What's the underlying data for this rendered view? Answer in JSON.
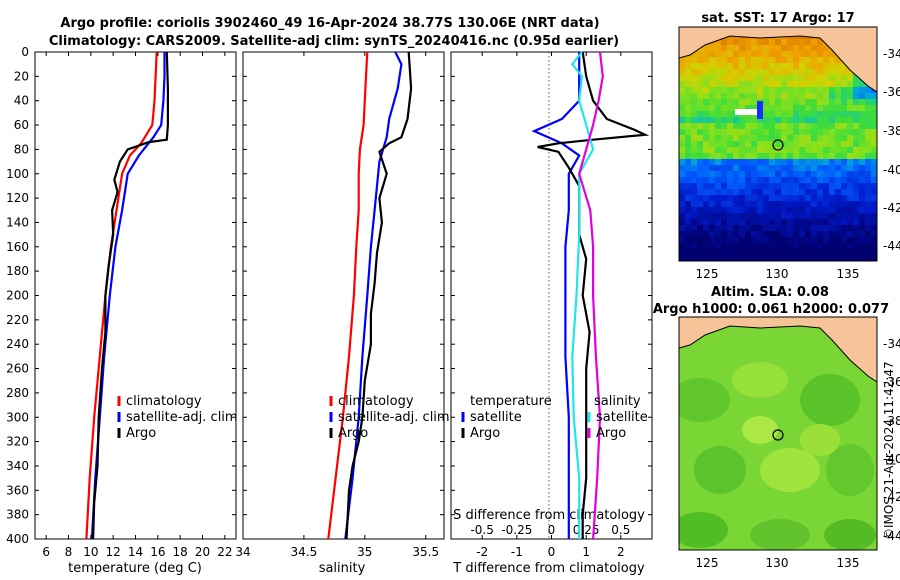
{
  "title": {
    "line1": "Argo profile: coriolis 3902460_49 16-Apr-2024 38.77S 130.06E (NRT data)",
    "line2": "Climatology: CARS2009. Satellite-adj clim: synTS_20240416.nc (0.95d earlier)"
  },
  "colors": {
    "climatology": "#ff0000",
    "satellite": "#0000ff",
    "argo": "#000000",
    "sat_salinity": "#22e6e6",
    "argo_salinity": "#e000e0",
    "land": "#f7c49a",
    "coast": "#000000"
  },
  "chart_data": [
    {
      "name": "temperature-profile",
      "type": "line",
      "xlabel": "temperature (deg C)",
      "ylabel": "",
      "xlim": [
        5,
        23
      ],
      "ylim": [
        400,
        0
      ],
      "xticks": [
        "6",
        "8",
        "10",
        "12",
        "14",
        "16",
        "18",
        "20",
        "22"
      ],
      "yticks": [
        "0",
        "20",
        "40",
        "60",
        "80",
        "100",
        "120",
        "140",
        "160",
        "180",
        "200",
        "220",
        "240",
        "260",
        "280",
        "300",
        "320",
        "340",
        "360",
        "380",
        "400"
      ],
      "series": [
        {
          "name": "climatology",
          "color": "#ff0000",
          "points": [
            [
              15.9,
              0
            ],
            [
              15.8,
              20
            ],
            [
              15.7,
              40
            ],
            [
              15.5,
              60
            ],
            [
              14.5,
              75
            ],
            [
              13.5,
              85
            ],
            [
              12.8,
              100
            ],
            [
              12.3,
              130
            ],
            [
              11.8,
              160
            ],
            [
              11.3,
              200
            ],
            [
              10.8,
              250
            ],
            [
              10.3,
              300
            ],
            [
              9.9,
              350
            ],
            [
              9.6,
              400
            ]
          ]
        },
        {
          "name": "satellite-adj. clim",
          "color": "#0000ff",
          "points": [
            [
              16.6,
              0
            ],
            [
              16.6,
              20
            ],
            [
              16.5,
              40
            ],
            [
              16.3,
              60
            ],
            [
              15.6,
              70
            ],
            [
              14.3,
              85
            ],
            [
              13.3,
              100
            ],
            [
              12.8,
              130
            ],
            [
              12.2,
              160
            ],
            [
              11.7,
              200
            ],
            [
              11.2,
              250
            ],
            [
              10.8,
              300
            ],
            [
              10.4,
              350
            ],
            [
              10.1,
              400
            ]
          ]
        },
        {
          "name": "Argo",
          "color": "#000000",
          "points": [
            [
              16.8,
              0
            ],
            [
              16.9,
              30
            ],
            [
              16.9,
              60
            ],
            [
              16.8,
              72
            ],
            [
              15.2,
              74
            ],
            [
              13.3,
              80
            ],
            [
              12.6,
              90
            ],
            [
              12.1,
              105
            ],
            [
              12.4,
              115
            ],
            [
              11.9,
              130
            ],
            [
              12.0,
              150
            ],
            [
              11.6,
              175
            ],
            [
              11.3,
              200
            ],
            [
              11.3,
              230
            ],
            [
              11.0,
              260
            ],
            [
              10.7,
              300
            ],
            [
              10.6,
              340
            ],
            [
              10.3,
              370
            ],
            [
              10.2,
              400
            ]
          ]
        }
      ],
      "legend": {
        "position": "bottom-right",
        "items": [
          "climatology",
          "satellite-adj. clim",
          "Argo"
        ]
      }
    },
    {
      "name": "salinity-profile",
      "type": "line",
      "xlabel": "salinity",
      "ylabel": "",
      "xlim": [
        34,
        35.65
      ],
      "ylim": [
        400,
        0
      ],
      "xticks": [
        "34",
        "34.5",
        "35",
        "35.5"
      ],
      "series": [
        {
          "name": "climatology",
          "color": "#ff0000",
          "points": [
            [
              35.02,
              0
            ],
            [
              35.01,
              20
            ],
            [
              35.0,
              40
            ],
            [
              34.99,
              60
            ],
            [
              34.96,
              80
            ],
            [
              34.95,
              100
            ],
            [
              34.95,
              130
            ],
            [
              34.93,
              160
            ],
            [
              34.91,
              200
            ],
            [
              34.87,
              250
            ],
            [
              34.82,
              300
            ],
            [
              34.76,
              350
            ],
            [
              34.7,
              400
            ]
          ]
        },
        {
          "name": "satellite-adj. clim",
          "color": "#0000ff",
          "points": [
            [
              35.25,
              0
            ],
            [
              35.3,
              10
            ],
            [
              35.27,
              30
            ],
            [
              35.2,
              55
            ],
            [
              35.18,
              70
            ],
            [
              35.12,
              90
            ],
            [
              35.08,
              130
            ],
            [
              35.05,
              160
            ],
            [
              35.02,
              200
            ],
            [
              34.98,
              250
            ],
            [
              34.95,
              300
            ],
            [
              34.9,
              350
            ],
            [
              34.84,
              400
            ]
          ]
        },
        {
          "name": "Argo",
          "color": "#000000",
          "points": [
            [
              35.36,
              0
            ],
            [
              35.38,
              30
            ],
            [
              35.35,
              55
            ],
            [
              35.3,
              70
            ],
            [
              35.2,
              75
            ],
            [
              35.12,
              82
            ],
            [
              35.18,
              100
            ],
            [
              35.12,
              120
            ],
            [
              35.14,
              140
            ],
            [
              35.1,
              165
            ],
            [
              35.08,
              190
            ],
            [
              35.05,
              215
            ],
            [
              35.05,
              240
            ],
            [
              35.0,
              270
            ],
            [
              34.98,
              300
            ],
            [
              34.95,
              320
            ],
            [
              34.9,
              340
            ],
            [
              34.87,
              360
            ],
            [
              34.86,
              380
            ],
            [
              34.85,
              400
            ]
          ]
        }
      ],
      "legend": {
        "position": "bottom-right",
        "items": [
          "climatology",
          "satellite-adj. clim",
          "Argo"
        ]
      }
    },
    {
      "name": "difference-profile",
      "type": "line",
      "xlabel": "T difference from climatology",
      "x2label": "S difference from climatology",
      "xlim": [
        -2.9,
        2.9
      ],
      "ylim": [
        400,
        0
      ],
      "xticks": [
        "-2",
        "-1",
        "0",
        "1",
        "2"
      ],
      "x2ticks": [
        "-0.5",
        "-0.25",
        "0",
        "0.25",
        "0.5"
      ],
      "series": [
        {
          "name": "temperature satellite",
          "color": "#0000ff",
          "points": [
            [
              0.8,
              0
            ],
            [
              0.8,
              20
            ],
            [
              0.8,
              40
            ],
            [
              0.3,
              55
            ],
            [
              -0.5,
              65
            ],
            [
              0.3,
              75
            ],
            [
              0.8,
              85
            ],
            [
              0.5,
              100
            ],
            [
              0.5,
              130
            ],
            [
              0.4,
              160
            ],
            [
              0.4,
              200
            ],
            [
              0.4,
              250
            ],
            [
              0.5,
              300
            ],
            [
              0.5,
              350
            ],
            [
              0.5,
              400
            ]
          ]
        },
        {
          "name": "temperature Argo",
          "color": "#000000",
          "points": [
            [
              0.9,
              0
            ],
            [
              1.0,
              20
            ],
            [
              1.2,
              40
            ],
            [
              1.6,
              55
            ],
            [
              2.4,
              64
            ],
            [
              2.7,
              68
            ],
            [
              1.2,
              72
            ],
            [
              0.2,
              75
            ],
            [
              -0.4,
              78
            ],
            [
              0.2,
              82
            ],
            [
              0.5,
              95
            ],
            [
              0.8,
              110
            ],
            [
              0.8,
              130
            ],
            [
              0.8,
              150
            ],
            [
              1.0,
              170
            ],
            [
              0.9,
              200
            ],
            [
              1.1,
              230
            ],
            [
              1.0,
              260
            ],
            [
              1.0,
              290
            ],
            [
              1.0,
              320
            ],
            [
              1.0,
              350
            ],
            [
              0.9,
              380
            ],
            [
              0.9,
              400
            ]
          ]
        },
        {
          "name": "salinity satellite",
          "color": "#22e6e6",
          "points": [
            [
              0.22,
              0
            ],
            [
              0.15,
              10
            ],
            [
              0.22,
              20
            ],
            [
              0.2,
              40
            ],
            [
              0.25,
              60
            ],
            [
              0.3,
              80
            ],
            [
              0.2,
              100
            ],
            [
              0.2,
              150
            ],
            [
              0.18,
              200
            ],
            [
              0.15,
              250
            ],
            [
              0.16,
              300
            ],
            [
              0.2,
              350
            ],
            [
              0.2,
              400
            ]
          ]
        },
        {
          "name": "salinity Argo",
          "color": "#e000e0",
          "points": [
            [
              0.35,
              0
            ],
            [
              0.37,
              20
            ],
            [
              0.34,
              40
            ],
            [
              0.3,
              60
            ],
            [
              0.25,
              80
            ],
            [
              0.2,
              100
            ],
            [
              0.28,
              130
            ],
            [
              0.3,
              160
            ],
            [
              0.3,
              200
            ],
            [
              0.32,
              250
            ],
            [
              0.35,
              300
            ],
            [
              0.33,
              350
            ],
            [
              0.3,
              400
            ]
          ]
        }
      ],
      "legend": {
        "position": "bottom",
        "temperature_title": "temperature",
        "salinity_title": "salinity",
        "temperature_items": [
          "satellite",
          "Argo"
        ],
        "salinity_items": [
          "satellite",
          "Argo"
        ]
      }
    },
    {
      "name": "sst-map",
      "type": "heatmap",
      "title": "sat. SST: 17 Argo: 17",
      "xticks": [
        "125",
        "130",
        "135"
      ],
      "yticks": [
        "-34",
        "-36",
        "-38",
        "-40",
        "-42",
        "-44"
      ],
      "xlim": [
        123.5,
        136.5
      ],
      "ylim": [
        -44.6,
        -33.2
      ],
      "float_position": [
        130.06,
        -38.77
      ]
    },
    {
      "name": "sla-map",
      "type": "heatmap",
      "title_line1": "Altim. SLA: 0.08",
      "title_line2": "Argo h1000: 0.061 h2000: 0.077",
      "xticks": [
        "125",
        "130",
        "135"
      ],
      "yticks": [
        "-34",
        "-36",
        "-38",
        "-40",
        "-42",
        "-44"
      ],
      "xlim": [
        123.5,
        136.5
      ],
      "ylim": [
        -44.6,
        -33.2
      ],
      "float_position": [
        130.06,
        -38.77
      ]
    }
  ],
  "footer": {
    "copyright": "©IMOS 21-Apr-2024 11:42:47"
  }
}
